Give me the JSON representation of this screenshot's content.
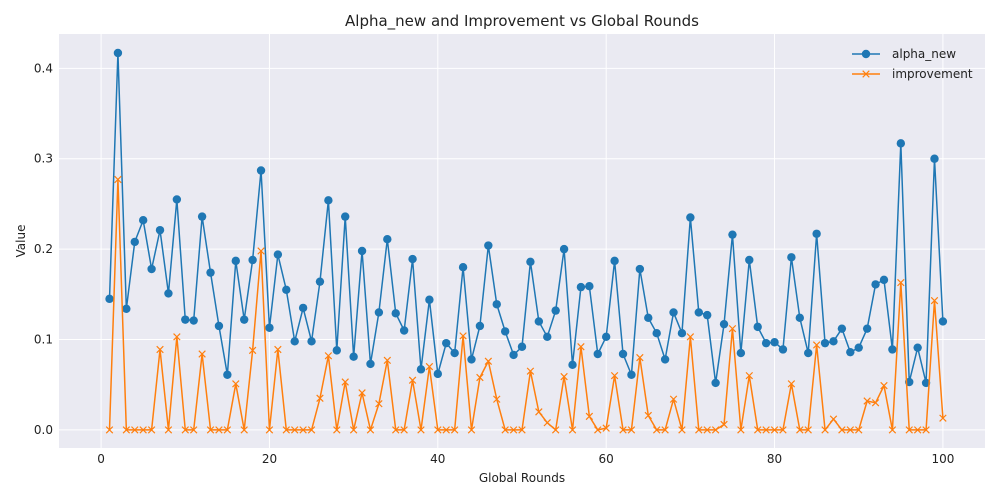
{
  "chart_data": {
    "type": "line",
    "title": "Alpha_new and Improvement vs Global Rounds",
    "xlabel": "Global Rounds",
    "ylabel": "Value",
    "xlim": [
      -5,
      105
    ],
    "ylim": [
      -0.02,
      0.438
    ],
    "xticks": [
      0,
      20,
      40,
      60,
      80,
      100
    ],
    "yticks": [
      0.0,
      0.1,
      0.2,
      0.3,
      0.4
    ],
    "grid": true,
    "legend_position": "top-right",
    "x": [
      1,
      2,
      3,
      4,
      5,
      6,
      7,
      8,
      9,
      10,
      11,
      12,
      13,
      14,
      15,
      16,
      17,
      18,
      19,
      20,
      21,
      22,
      23,
      24,
      25,
      26,
      27,
      28,
      29,
      30,
      31,
      32,
      33,
      34,
      35,
      36,
      37,
      38,
      39,
      40,
      41,
      42,
      43,
      44,
      45,
      46,
      47,
      48,
      49,
      50,
      51,
      52,
      53,
      54,
      55,
      56,
      57,
      58,
      59,
      60,
      61,
      62,
      63,
      64,
      65,
      66,
      67,
      68,
      69,
      70,
      71,
      72,
      73,
      74,
      75,
      76,
      77,
      78,
      79,
      80,
      81,
      82,
      83,
      84,
      85,
      86,
      87,
      88,
      89,
      90,
      91,
      92,
      93,
      94,
      95,
      96,
      97,
      98,
      99,
      100
    ],
    "series": [
      {
        "name": "alpha_new",
        "color": "#1f77b4",
        "marker": "circle",
        "values": [
          0.145,
          0.417,
          0.134,
          0.208,
          0.232,
          0.178,
          0.221,
          0.151,
          0.255,
          0.122,
          0.121,
          0.236,
          0.174,
          0.115,
          0.061,
          0.187,
          0.122,
          0.188,
          0.287,
          0.113,
          0.194,
          0.155,
          0.098,
          0.135,
          0.098,
          0.164,
          0.254,
          0.088,
          0.236,
          0.081,
          0.198,
          0.073,
          0.13,
          0.211,
          0.129,
          0.11,
          0.189,
          0.067,
          0.144,
          0.062,
          0.096,
          0.085,
          0.18,
          0.078,
          0.115,
          0.204,
          0.139,
          0.109,
          0.083,
          0.092,
          0.186,
          0.12,
          0.103,
          0.132,
          0.2,
          0.072,
          0.158,
          0.159,
          0.084,
          0.103,
          0.187,
          0.084,
          0.061,
          0.178,
          0.124,
          0.107,
          0.078,
          0.13,
          0.107,
          0.235,
          0.13,
          0.127,
          0.052,
          0.117,
          0.216,
          0.085,
          0.188,
          0.114,
          0.096,
          0.097,
          0.089,
          0.191,
          0.124,
          0.085,
          0.217,
          0.096,
          0.098,
          0.112,
          0.086,
          0.091,
          0.112,
          0.161,
          0.166,
          0.089,
          0.317,
          0.053,
          0.091,
          0.052,
          0.3,
          0.12
        ]
      },
      {
        "name": "improvement",
        "color": "#ff7f0e",
        "marker": "x",
        "values": [
          0.0,
          0.277,
          0.0,
          0.0,
          0.0,
          0.0,
          0.089,
          0.0,
          0.103,
          0.0,
          0.0,
          0.084,
          0.0,
          0.0,
          0.0,
          0.051,
          0.0,
          0.088,
          0.198,
          0.0,
          0.089,
          0.0,
          0.0,
          0.0,
          0.0,
          0.035,
          0.082,
          0.0,
          0.053,
          0.0,
          0.041,
          0.0,
          0.029,
          0.077,
          0.0,
          0.0,
          0.055,
          0.0,
          0.07,
          0.0,
          0.0,
          0.0,
          0.104,
          0.0,
          0.058,
          0.076,
          0.034,
          0.0,
          0.0,
          0.0,
          0.065,
          0.02,
          0.008,
          0.0,
          0.059,
          0.0,
          0.092,
          0.015,
          0.0,
          0.002,
          0.06,
          0.0,
          0.0,
          0.08,
          0.016,
          0.0,
          0.0,
          0.034,
          0.0,
          0.103,
          0.0,
          0.0,
          0.0,
          0.006,
          0.112,
          0.0,
          0.06,
          0.0,
          0.0,
          0.0,
          0.0,
          0.051,
          0.0,
          0.0,
          0.094,
          0.0,
          0.012,
          0.0,
          0.0,
          0.0,
          0.032,
          0.03,
          0.049,
          0.0,
          0.163,
          0.0,
          0.0,
          0.0,
          0.143,
          0.013
        ]
      }
    ]
  }
}
